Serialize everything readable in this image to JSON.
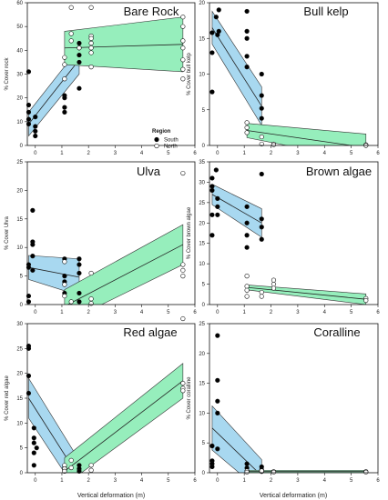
{
  "figure": {
    "xlabel": "Vertical deformation (m)",
    "legend": {
      "title": "Region",
      "south": "South",
      "north": "North"
    }
  },
  "colors": {
    "south_band": "#a8d8f0",
    "north_band": "#96eebc",
    "south_marker": "#000000",
    "north_marker": "#ffffff",
    "band_edge": "#333333"
  },
  "chart_data": [
    {
      "type": "scatter",
      "title": "Bare Rock",
      "ylabel": "% Cover rock",
      "xlim": [
        -0.3,
        6
      ],
      "ylim": [
        0,
        60
      ],
      "xticks": [
        0,
        1,
        2,
        3,
        4,
        5,
        6
      ],
      "yticks": [
        0,
        10,
        20,
        30,
        40,
        50,
        60
      ],
      "series": [
        {
          "name": "South",
          "points": [
            [
              -0.25,
              31
            ],
            [
              -0.25,
              17
            ],
            [
              -0.25,
              14
            ],
            [
              -0.25,
              11
            ],
            [
              -0.25,
              9
            ],
            [
              0,
              12
            ],
            [
              0,
              8
            ],
            [
              0,
              4
            ],
            [
              0,
              6
            ],
            [
              1.1,
              21
            ],
            [
              1.1,
              16
            ],
            [
              1.1,
              14
            ],
            [
              1.1,
              20
            ],
            [
              1.65,
              43
            ],
            [
              1.65,
              41
            ],
            [
              1.65,
              38
            ],
            [
              1.65,
              35
            ],
            [
              1.65,
              24
            ]
          ],
          "fit": {
            "x": [
              -0.25,
              1.65
            ],
            "y": [
              9,
              36
            ],
            "lower": [
              4,
              30
            ],
            "upper": [
              14,
              41
            ]
          }
        },
        {
          "name": "North",
          "points": [
            [
              1.1,
              37
            ],
            [
              1.1,
              34
            ],
            [
              1.1,
              28
            ],
            [
              1.35,
              63
            ],
            [
              1.35,
              58
            ],
            [
              1.35,
              47
            ],
            [
              1.35,
              44
            ],
            [
              1.65,
              41
            ],
            [
              2.1,
              58
            ],
            [
              2.1,
              46
            ],
            [
              2.1,
              45
            ],
            [
              2.1,
              43
            ],
            [
              2.1,
              41
            ],
            [
              2.1,
              39
            ],
            [
              2.1,
              33
            ],
            [
              5.55,
              54
            ],
            [
              5.55,
              50
            ],
            [
              5.55,
              44
            ],
            [
              5.55,
              41
            ],
            [
              5.55,
              36
            ],
            [
              5.55,
              32
            ],
            [
              5.55,
              28
            ]
          ],
          "fit": {
            "x": [
              1.1,
              5.55
            ],
            "y": [
              41,
              42.5
            ],
            "lower": [
              34,
              31
            ],
            "upper": [
              48,
              54
            ]
          }
        }
      ]
    },
    {
      "type": "scatter",
      "title": "Bull kelp",
      "ylabel": "% Cover bull kelp",
      "xlim": [
        -0.3,
        6
      ],
      "ylim": [
        0,
        20
      ],
      "xticks": [
        0,
        1,
        2,
        3,
        4,
        5,
        6
      ],
      "yticks": [
        0,
        5,
        10,
        15,
        20
      ],
      "series": [
        {
          "name": "South",
          "points": [
            [
              -0.2,
              15.8
            ],
            [
              -0.2,
              13
            ],
            [
              -0.2,
              7.5
            ],
            [
              -0.05,
              18
            ],
            [
              0,
              15.5
            ],
            [
              0.05,
              19
            ],
            [
              0.05,
              16
            ],
            [
              1.1,
              18.8
            ],
            [
              1.1,
              16
            ],
            [
              1.1,
              15
            ],
            [
              1.1,
              12.5
            ],
            [
              1.1,
              11
            ],
            [
              1.65,
              10
            ],
            [
              1.65,
              7
            ],
            [
              1.65,
              5.2
            ],
            [
              1.65,
              3.8
            ]
          ],
          "fit": {
            "x": [
              -0.2,
              1.65
            ],
            "y": [
              16.5,
              5.5
            ],
            "lower": [
              14.2,
              2.8
            ],
            "upper": [
              18.8,
              8.2
            ]
          }
        },
        {
          "name": "North",
          "points": [
            [
              1.1,
              3.2
            ],
            [
              1.1,
              2.5
            ],
            [
              1.1,
              1.8
            ],
            [
              1.65,
              1.2
            ],
            [
              1.65,
              0.2
            ],
            [
              2.1,
              0.2
            ],
            [
              2.1,
              0.1
            ],
            [
              5.55,
              0.1
            ],
            [
              5.55,
              0
            ]
          ],
          "fit": {
            "x": [
              1.1,
              5.55
            ],
            "y": [
              2.1,
              -0.3
            ],
            "lower": [
              1.1,
              -2.2
            ],
            "upper": [
              3.1,
              1.6
            ]
          }
        }
      ]
    },
    {
      "type": "scatter",
      "title": "Ulva",
      "ylabel": "% Cover Ulva",
      "xlim": [
        -0.3,
        6
      ],
      "ylim": [
        0,
        25
      ],
      "xticks": [
        0,
        1,
        2,
        3,
        4,
        5,
        6
      ],
      "yticks": [
        0,
        5,
        10,
        15,
        20,
        25
      ],
      "series": [
        {
          "name": "South",
          "points": [
            [
              -0.25,
              7
            ],
            [
              -0.25,
              6.5
            ],
            [
              -0.25,
              1.5
            ],
            [
              -0.25,
              0.5
            ],
            [
              -0.1,
              16.5
            ],
            [
              -0.1,
              11
            ],
            [
              -0.1,
              10.5
            ],
            [
              -0.1,
              8.5
            ],
            [
              -0.1,
              6
            ],
            [
              1.1,
              8
            ],
            [
              1.1,
              5
            ],
            [
              1.1,
              4
            ],
            [
              1.1,
              2
            ],
            [
              1.65,
              8
            ],
            [
              1.65,
              7
            ],
            [
              1.65,
              5.5
            ],
            [
              1.65,
              2
            ],
            [
              1.65,
              0.5
            ]
          ],
          "fit": {
            "x": [
              -0.25,
              1.65
            ],
            "y": [
              6.5,
              4.8
            ],
            "lower": [
              4.4,
              1.6
            ],
            "upper": [
              8.6,
              8
            ]
          }
        },
        {
          "name": "North",
          "points": [
            [
              1.1,
              7.5
            ],
            [
              1.1,
              3.5
            ],
            [
              1.1,
              1.5
            ],
            [
              1.35,
              0.5
            ],
            [
              2.1,
              5.5
            ],
            [
              2.1,
              1
            ],
            [
              2.1,
              0.2
            ],
            [
              5.55,
              23
            ],
            [
              5.55,
              7
            ],
            [
              5.55,
              6
            ],
            [
              5.55,
              5
            ]
          ],
          "fit": {
            "x": [
              1.1,
              5.55
            ],
            "y": [
              -0.3,
              10.5
            ],
            "lower": [
              -3.2,
              7
            ],
            "upper": [
              2.6,
              14
            ]
          }
        }
      ]
    },
    {
      "type": "scatter",
      "title": "Brown algae",
      "ylabel": "% Cover brown algae",
      "xlim": [
        -0.3,
        6
      ],
      "ylim": [
        0,
        35
      ],
      "xticks": [
        0,
        1,
        2,
        3,
        4,
        5,
        6
      ],
      "yticks": [
        0,
        5,
        10,
        15,
        20,
        25,
        30,
        35
      ],
      "series": [
        {
          "name": "South",
          "points": [
            [
              -0.2,
              31
            ],
            [
              -0.2,
              29
            ],
            [
              -0.2,
              28
            ],
            [
              -0.2,
              22
            ],
            [
              -0.2,
              17
            ],
            [
              -0.05,
              33
            ],
            [
              0,
              26
            ],
            [
              0,
              24
            ],
            [
              0,
              22
            ],
            [
              1.1,
              24
            ],
            [
              1.1,
              20
            ],
            [
              1.1,
              17
            ],
            [
              1.1,
              14
            ],
            [
              1.65,
              32
            ],
            [
              1.65,
              21
            ],
            [
              1.65,
              19
            ],
            [
              1.65,
              16
            ]
          ],
          "fit": {
            "x": [
              -0.2,
              1.65
            ],
            "y": [
              27,
              20
            ],
            "lower": [
              24.5,
              16.5
            ],
            "upper": [
              29.5,
              23.5
            ]
          }
        },
        {
          "name": "North",
          "points": [
            [
              1.1,
              7
            ],
            [
              1.1,
              4.5
            ],
            [
              1.1,
              3.5
            ],
            [
              1.1,
              2
            ],
            [
              1.65,
              3
            ],
            [
              1.65,
              2
            ],
            [
              2.1,
              6
            ],
            [
              2.1,
              5
            ],
            [
              2.1,
              4
            ],
            [
              5.55,
              1.5
            ],
            [
              5.55,
              1
            ]
          ],
          "fit": {
            "x": [
              1.1,
              5.55
            ],
            "y": [
              4.2,
              1.3
            ],
            "lower": [
              3.6,
              0
            ],
            "upper": [
              4.8,
              2.6
            ]
          }
        }
      ]
    },
    {
      "type": "scatter",
      "title": "Red algae",
      "ylabel": "% Cover red algae",
      "xlim": [
        -0.3,
        6
      ],
      "ylim": [
        0,
        30
      ],
      "xticks": [
        0,
        1,
        2,
        3,
        4,
        5,
        6
      ],
      "yticks": [
        0,
        5,
        10,
        15,
        20,
        25,
        30
      ],
      "series": [
        {
          "name": "South",
          "points": [
            [
              -0.25,
              25.5
            ],
            [
              -0.25,
              25
            ],
            [
              -0.25,
              19.5
            ],
            [
              -0.25,
              16
            ],
            [
              -0.05,
              9
            ],
            [
              -0.05,
              7
            ],
            [
              -0.05,
              6
            ],
            [
              -0.05,
              4
            ],
            [
              -0.05,
              1.5
            ],
            [
              0.05,
              5
            ],
            [
              1.1,
              1
            ],
            [
              1.1,
              0.5
            ],
            [
              1.65,
              1.5
            ],
            [
              1.65,
              0.8
            ],
            [
              1.65,
              0.3
            ]
          ],
          "fit": {
            "x": [
              -0.25,
              1.65
            ],
            "y": [
              15,
              -1
            ],
            "lower": [
              11,
              -4.5
            ],
            "upper": [
              19,
              2.5
            ]
          }
        },
        {
          "name": "North",
          "points": [
            [
              1.1,
              1.5
            ],
            [
              1.1,
              0.8
            ],
            [
              1.1,
              0.3
            ],
            [
              1.35,
              2.5
            ],
            [
              1.35,
              1
            ],
            [
              2.1,
              1.5
            ],
            [
              2.1,
              0.5
            ],
            [
              5.55,
              31
            ],
            [
              5.55,
              18
            ],
            [
              5.55,
              17
            ],
            [
              5.55,
              16.5
            ]
          ],
          "fit": {
            "x": [
              1.1,
              5.55
            ],
            "y": [
              0.3,
              18.5
            ],
            "lower": [
              -2.5,
              15
            ],
            "upper": [
              3,
              22
            ]
          }
        }
      ]
    },
    {
      "type": "scatter",
      "title": "Coralline",
      "ylabel": "% Cover coralline",
      "xlim": [
        -0.3,
        6
      ],
      "ylim": [
        0,
        25
      ],
      "xticks": [
        0,
        1,
        2,
        3,
        4,
        5,
        6
      ],
      "yticks": [
        0,
        5,
        10,
        15,
        20,
        25
      ],
      "series": [
        {
          "name": "South",
          "points": [
            [
              -0.2,
              4.5
            ],
            [
              -0.2,
              2
            ],
            [
              -0.2,
              1.5
            ],
            [
              -0.2,
              1
            ],
            [
              0,
              23
            ],
            [
              0,
              15.5
            ],
            [
              0,
              12
            ],
            [
              0,
              10
            ],
            [
              0,
              4
            ],
            [
              1.1,
              1.5
            ],
            [
              1.1,
              0.8
            ],
            [
              1.1,
              0.3
            ],
            [
              1.65,
              1
            ],
            [
              1.65,
              0.5
            ],
            [
              1.65,
              0.2
            ]
          ],
          "fit": {
            "x": [
              -0.2,
              1.65
            ],
            "y": [
              7.5,
              -0.5
            ],
            "lower": [
              3.8,
              -3.2
            ],
            "upper": [
              11.2,
              2.2
            ]
          }
        },
        {
          "name": "North",
          "points": [
            [
              1.1,
              0.3
            ],
            [
              1.1,
              0.1
            ],
            [
              1.65,
              0.3
            ],
            [
              2.1,
              0.2
            ],
            [
              2.1,
              0.1
            ],
            [
              5.55,
              0.2
            ],
            [
              5.55,
              0.1
            ]
          ],
          "fit": {
            "x": [
              1.1,
              5.55
            ],
            "y": [
              0.2,
              0.2
            ],
            "lower": [
              0,
              0
            ],
            "upper": [
              0.4,
              0.4
            ]
          }
        }
      ]
    }
  ]
}
